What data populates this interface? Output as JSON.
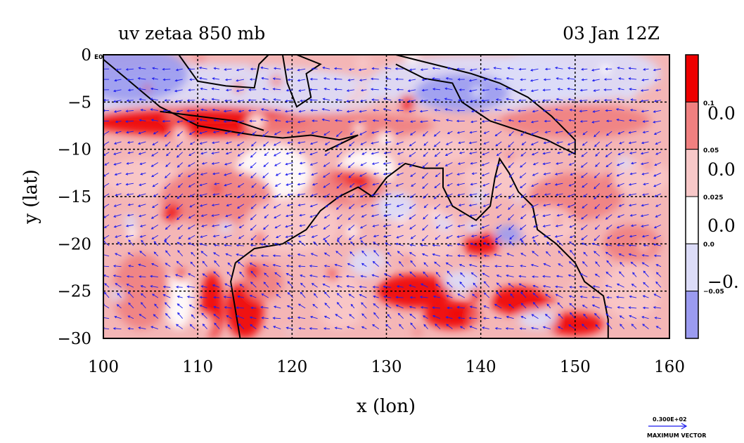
{
  "chart_data": {
    "type": "heatmap",
    "title": "uv zetaa 850 mb",
    "subtitle": "03 Jan 12Z",
    "xlabel": "x (lon)",
    "ylabel": "y (lat)",
    "xlim": [
      100,
      160
    ],
    "ylim": [
      -30,
      0
    ],
    "x_ticks": [
      "100",
      "110",
      "120",
      "130",
      "140",
      "150",
      "160"
    ],
    "y_ticks": [
      "0",
      "−5",
      "−10",
      "−15",
      "−20",
      "−25",
      "−30"
    ],
    "x_tick_values": [
      100,
      110,
      120,
      130,
      140,
      150,
      160
    ],
    "y_tick_values": [
      0,
      -5,
      -10,
      -15,
      -20,
      -25,
      -30
    ],
    "grid": true,
    "legend": "right",
    "colorbar": {
      "levels": [
        {
          "color": "#ee0000"
        },
        {
          "color": "#f08080"
        },
        {
          "color": "#f8c8c8"
        },
        {
          "color": "#ffffff"
        },
        {
          "color": "#dcdcf8"
        },
        {
          "color": "#9b9bf0"
        }
      ],
      "small_labels": [
        "0.1",
        "0.05",
        "0.025",
        "0.0",
        "−0.05"
      ],
      "big_labels": [
        "0.0",
        "0.0",
        "0.0",
        "−0."
      ]
    },
    "vector_key": {
      "value": "0.300E+02",
      "label": "MAXIMUM VECTOR"
    },
    "origin_label": "E0",
    "colors": {
      "strong_pos": "#ee0000",
      "pos": "#f08080",
      "weak_pos": "#f8c8c8",
      "zero": "#ffffff",
      "weak_neg": "#dcdcf8",
      "neg": "#9b9bf0",
      "vector": "#1a1aee",
      "coast": "#000000"
    }
  }
}
